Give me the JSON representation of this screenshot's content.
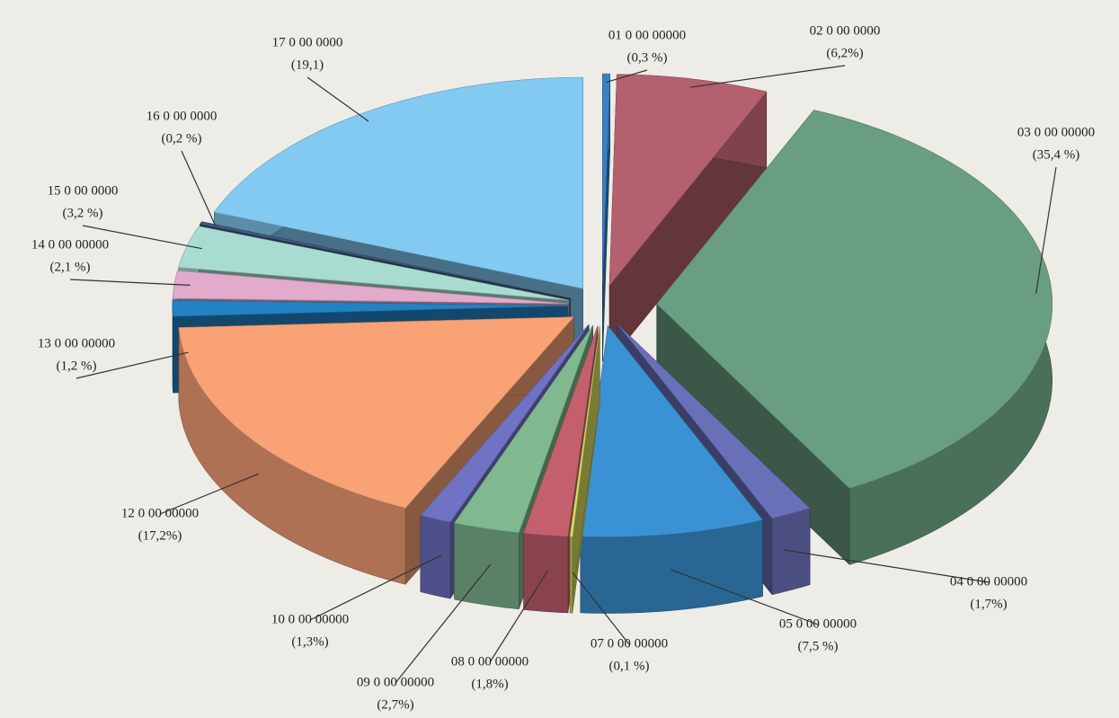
{
  "chart_data": {
    "type": "pie",
    "categories": [
      "01 0 00 00000",
      "02 0 00 0000",
      "03 0 00 00000",
      "04 0 00 00000",
      "05 0 00 00000",
      "07 0 00 00000",
      "08 0 00 00000",
      "09 0 00 00000",
      "10 0 00 00000",
      "12 0 00 00000",
      "13 0 00 00000",
      "14 0 00 00000",
      "15 0 00 0000",
      "16 0 00 0000",
      "17 0 00 0000"
    ],
    "values": [
      0.3,
      6.2,
      35.4,
      1.7,
      7.5,
      0.1,
      1.8,
      2.7,
      1.3,
      17.2,
      1.2,
      2.1,
      3.2,
      0.2,
      19.1
    ],
    "value_labels": [
      "(0,3 %)",
      "(6,2%)",
      "(35,4 %)",
      "(1,7%)",
      "(7,5 %)",
      "(0,1 %)",
      "(1,8%)",
      "(2,7%)",
      "(1,3%)",
      "(17,2%)",
      "(1,2 %)",
      "(2,1 %)",
      "(3,2 %)",
      "(0,2 %)",
      "(19,1)"
    ],
    "colors": [
      "#3a80c4",
      "#b4606e",
      "#6a9e82",
      "#6a70b8",
      "#3a92d4",
      "#d8e060",
      "#c4606e",
      "#80b890",
      "#7072c4",
      "#f8a276",
      "#2282c4",
      "#e2aacb",
      "#a8dcd0",
      "#40587e",
      "#82caf2"
    ]
  }
}
